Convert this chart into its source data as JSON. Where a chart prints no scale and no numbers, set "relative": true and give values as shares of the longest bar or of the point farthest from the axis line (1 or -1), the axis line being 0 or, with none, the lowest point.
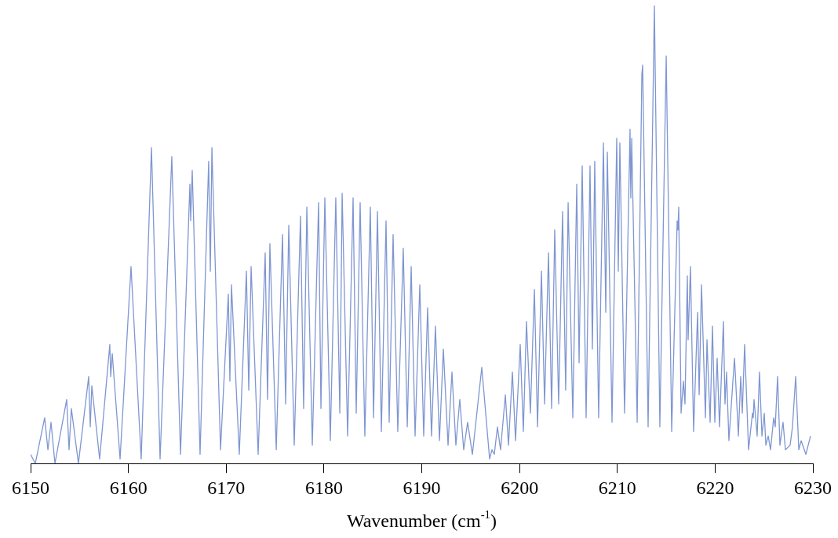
{
  "chart_data": {
    "type": "line",
    "xlabel": "Wavenumber (cm$^{-1}$)",
    "relative": true,
    "color": "#7f96d2",
    "xlim": [
      6150,
      6230
    ],
    "xticks": [
      6150,
      6160,
      6170,
      6180,
      6190,
      6200,
      6210,
      6220,
      6230
    ],
    "grid": false,
    "legend": false,
    "x": [
      6150.0,
      6150.48,
      6151.44,
      6151.77,
      6152.09,
      6152.49,
      6153.69,
      6153.93,
      6154.17,
      6154.89,
      6155.94,
      6156.1,
      6156.26,
      6157.06,
      6158.1,
      6158.19,
      6158.35,
      6159.15,
      6160.27,
      6161.31,
      6162.36,
      6163.24,
      6164.44,
      6165.33,
      6166.29,
      6166.37,
      6166.53,
      6167.33,
      6168.21,
      6168.38,
      6168.54,
      6169.42,
      6170.22,
      6170.38,
      6170.54,
      6171.34,
      6172.07,
      6172.31,
      6172.55,
      6173.27,
      6173.99,
      6174.23,
      6174.47,
      6175.12,
      6175.76,
      6176.08,
      6176.4,
      6176.96,
      6177.6,
      6177.92,
      6178.25,
      6178.81,
      6179.45,
      6179.69,
      6180.09,
      6180.65,
      6181.21,
      6181.62,
      6181.86,
      6182.42,
      6182.98,
      6183.3,
      6183.7,
      6184.18,
      6184.74,
      6185.07,
      6185.47,
      6185.87,
      6186.35,
      6186.67,
      6187.07,
      6187.55,
      6188.11,
      6188.52,
      6188.92,
      6189.32,
      6189.8,
      6190.2,
      6190.6,
      6191.0,
      6191.4,
      6191.81,
      6192.21,
      6192.69,
      6193.09,
      6193.49,
      6193.89,
      6194.29,
      6194.69,
      6195.18,
      6196.14,
      6196.94,
      6197.18,
      6197.42,
      6197.74,
      6198.06,
      6198.55,
      6198.87,
      6199.27,
      6199.59,
      6200.07,
      6200.39,
      6200.71,
      6201.11,
      6201.52,
      6201.84,
      6202.24,
      6202.56,
      6202.96,
      6203.28,
      6203.6,
      6204.0,
      6204.4,
      6204.72,
      6204.97,
      6205.45,
      6205.85,
      6206.09,
      6206.41,
      6206.81,
      6207.21,
      6207.45,
      6207.69,
      6208.09,
      6208.58,
      6208.82,
      6208.98,
      6209.46,
      6209.94,
      6210.1,
      6210.26,
      6210.74,
      6211.3,
      6211.38,
      6211.47,
      6212.03,
      6212.51,
      6212.59,
      6213.15,
      6213.79,
      6214.35,
      6215.0,
      6215.56,
      6216.12,
      6216.2,
      6216.28,
      6216.52,
      6216.76,
      6216.92,
      6217.16,
      6217.24,
      6217.48,
      6217.8,
      6218.21,
      6218.37,
      6218.61,
      6219.01,
      6219.17,
      6219.49,
      6219.73,
      6219.97,
      6220.21,
      6220.45,
      6220.85,
      6221.01,
      6221.17,
      6221.41,
      6221.98,
      6222.06,
      6222.38,
      6222.62,
      6222.78,
      6223.02,
      6223.42,
      6223.82,
      6223.9,
      6223.98,
      6224.3,
      6224.54,
      6224.79,
      6225.03,
      6225.19,
      6225.43,
      6225.67,
      6225.99,
      6226.15,
      6226.39,
      6226.63,
      6226.95,
      6227.19,
      6227.67,
      6227.91,
      6228.24,
      6228.56,
      6228.8,
      6229.28,
      6229.76
    ],
    "values": [
      0.02,
      0.0,
      0.1,
      0.03,
      0.09,
      0.0,
      0.14,
      0.03,
      0.12,
      0.0,
      0.19,
      0.08,
      0.17,
      0.01,
      0.26,
      0.19,
      0.24,
      0.01,
      0.43,
      0.01,
      0.69,
      0.01,
      0.67,
      0.02,
      0.61,
      0.53,
      0.64,
      0.02,
      0.66,
      0.42,
      0.69,
      0.03,
      0.37,
      0.18,
      0.39,
      0.02,
      0.42,
      0.16,
      0.43,
      0.02,
      0.46,
      0.14,
      0.48,
      0.03,
      0.5,
      0.13,
      0.52,
      0.04,
      0.54,
      0.12,
      0.56,
      0.04,
      0.57,
      0.12,
      0.58,
      0.05,
      0.58,
      0.11,
      0.59,
      0.06,
      0.58,
      0.11,
      0.57,
      0.06,
      0.56,
      0.1,
      0.55,
      0.07,
      0.53,
      0.09,
      0.5,
      0.07,
      0.47,
      0.08,
      0.43,
      0.06,
      0.39,
      0.06,
      0.34,
      0.06,
      0.3,
      0.05,
      0.25,
      0.04,
      0.2,
      0.04,
      0.14,
      0.03,
      0.09,
      0.02,
      0.21,
      0.01,
      0.03,
      0.02,
      0.08,
      0.03,
      0.15,
      0.04,
      0.2,
      0.05,
      0.26,
      0.07,
      0.31,
      0.11,
      0.38,
      0.08,
      0.42,
      0.13,
      0.46,
      0.12,
      0.51,
      0.13,
      0.55,
      0.16,
      0.57,
      0.1,
      0.61,
      0.22,
      0.65,
      0.1,
      0.65,
      0.25,
      0.66,
      0.1,
      0.7,
      0.33,
      0.68,
      0.09,
      0.71,
      0.42,
      0.7,
      0.11,
      0.73,
      0.58,
      0.71,
      0.09,
      0.85,
      0.87,
      0.08,
      1.0,
      0.08,
      0.89,
      0.07,
      0.53,
      0.51,
      0.56,
      0.11,
      0.18,
      0.13,
      0.41,
      0.27,
      0.43,
      0.07,
      0.33,
      0.15,
      0.39,
      0.1,
      0.27,
      0.09,
      0.3,
      0.09,
      0.23,
      0.08,
      0.31,
      0.13,
      0.2,
      0.05,
      0.23,
      0.2,
      0.06,
      0.19,
      0.11,
      0.26,
      0.03,
      0.11,
      0.1,
      0.14,
      0.06,
      0.2,
      0.06,
      0.11,
      0.04,
      0.06,
      0.03,
      0.1,
      0.08,
      0.19,
      0.04,
      0.09,
      0.03,
      0.04,
      0.08,
      0.19,
      0.03,
      0.05,
      0.02,
      0.06
    ]
  }
}
